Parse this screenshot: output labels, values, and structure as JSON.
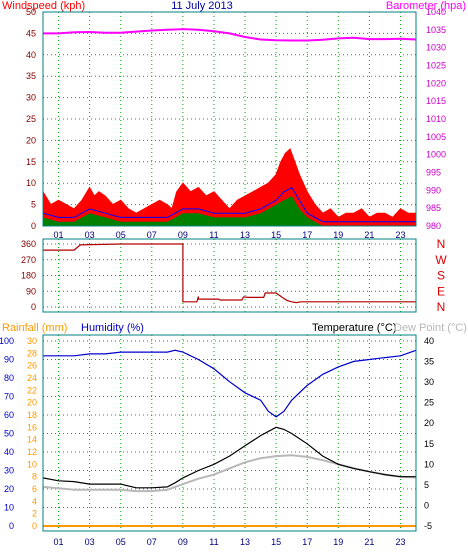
{
  "header": {
    "left_label": "Windspeed (kph)",
    "date": "11 July 2013",
    "right_label": "Barometer (hpa)"
  },
  "colors": {
    "windspeed": "#ff0000",
    "wind_avg": "#0000ff",
    "wind_fill": "#008000",
    "barometer": "#ff00ff",
    "direction": "#b00000",
    "rainfall": "#ff9900",
    "humidity": "#0000cc",
    "temperature": "#000000",
    "dew_point": "#b8b8b8",
    "grid": "#00aa00",
    "frame": "#008080"
  },
  "chart_data": [
    {
      "type": "line",
      "title": "11 July 2013",
      "ylabel": "Windspeed (kph)",
      "y2label": "Barometer (hpa)",
      "x_ticks": [
        "01",
        "03",
        "05",
        "07",
        "09",
        "11",
        "13",
        "15",
        "17",
        "19",
        "21",
        "23"
      ],
      "xlim": [
        0,
        24
      ],
      "ylim": [
        0,
        50
      ],
      "y_ticks": [
        0,
        5,
        10,
        15,
        20,
        25,
        30,
        35,
        40,
        45,
        50
      ],
      "y2lim": [
        980,
        1040
      ],
      "y2_ticks": [
        980,
        985,
        990,
        995,
        1000,
        1005,
        1010,
        1015,
        1020,
        1025,
        1030,
        1035,
        1040
      ],
      "grid": true,
      "series": [
        {
          "axis": "right",
          "x": [
            0,
            1,
            2,
            3,
            4,
            5,
            6,
            7,
            8,
            8.5,
            9,
            10,
            11,
            12,
            13,
            14,
            15,
            16,
            17,
            18,
            19,
            20,
            21,
            22,
            23,
            24
          ],
          "values": [
            1034,
            1034,
            1034.3,
            1034.4,
            1034.2,
            1034.2,
            1034.5,
            1034.8,
            1035,
            1035.1,
            1035.2,
            1035,
            1034.6,
            1034,
            1033,
            1032.3,
            1032.1,
            1032,
            1032,
            1032.2,
            1032.6,
            1032.8,
            1032.4,
            1032.4,
            1032.5,
            1032.3
          ]
        },
        {
          "x": [
            0,
            0.5,
            1,
            1.5,
            2,
            2.5,
            3,
            3.3,
            3.6,
            4,
            4.5,
            5,
            5.5,
            6,
            6.5,
            7,
            7.5,
            8,
            8.3,
            8.6,
            9,
            9.5,
            10,
            10.5,
            11,
            11.5,
            12,
            12.5,
            13,
            13.5,
            14,
            14.5,
            15,
            15.3,
            15.6,
            15.9,
            16.2,
            16.5,
            17,
            17.5,
            18,
            18.5,
            19,
            19.5,
            20,
            20.5,
            21,
            21.5,
            22,
            22.5,
            23,
            23.5,
            24
          ],
          "values": [
            8,
            5,
            6,
            5,
            4,
            6,
            9,
            7,
            8,
            7,
            5,
            6,
            4,
            3,
            4,
            5,
            6,
            5,
            4,
            8,
            10,
            8,
            9,
            7,
            8,
            6,
            4,
            6,
            7,
            8,
            9,
            10,
            12,
            15,
            17,
            18,
            15,
            12,
            8,
            5,
            3,
            4,
            2,
            3,
            3,
            4,
            2,
            3,
            3,
            2,
            4,
            3,
            3
          ]
        },
        {
          "x": [
            0,
            1,
            2,
            3,
            4,
            5,
            6,
            7,
            8,
            9,
            10,
            11,
            12,
            13,
            14,
            15,
            15.5,
            16,
            16.5,
            17,
            18,
            19,
            20,
            21,
            22,
            23,
            24
          ],
          "values": [
            3,
            2,
            2,
            4,
            3,
            2,
            2,
            2,
            2,
            4,
            4,
            3,
            3,
            3,
            4,
            6,
            8,
            9,
            6,
            3,
            1,
            1,
            1,
            1,
            1,
            1,
            1
          ]
        },
        {
          "x": [
            0,
            1,
            2,
            3,
            4,
            5,
            6,
            7,
            8,
            9,
            10,
            11,
            12,
            13,
            14,
            15,
            15.5,
            16,
            16.5,
            17,
            18,
            19,
            20,
            21,
            22,
            23,
            24
          ],
          "values": [
            2,
            1,
            1,
            3,
            2,
            1,
            1,
            1,
            1,
            3,
            3,
            2,
            2,
            2,
            3,
            5,
            6,
            7,
            4,
            2,
            0,
            0,
            0,
            0,
            0,
            0,
            0
          ]
        }
      ]
    },
    {
      "type": "line",
      "y_ticks": [
        0,
        90,
        180,
        270,
        360
      ],
      "ylim": [
        0,
        360
      ],
      "compass": [
        "N",
        "W",
        "S",
        "E",
        "N"
      ],
      "series": [
        {
          "x": [
            0,
            2,
            2.2,
            2.4,
            5,
            7,
            8.9,
            9,
            9,
            9.9,
            10,
            10,
            11.3,
            11.4,
            12.8,
            12.9,
            13.2,
            14.2,
            14.3,
            15,
            15.4,
            15.7,
            16,
            16.3,
            16.6,
            17,
            24
          ],
          "values": [
            325,
            325,
            340,
            355,
            360,
            360,
            360,
            360,
            30,
            30,
            60,
            45,
            45,
            40,
            40,
            58,
            55,
            55,
            80,
            80,
            55,
            38,
            30,
            25,
            30,
            30,
            30
          ]
        }
      ]
    },
    {
      "type": "line",
      "legend": [
        "Rainfall (mm)",
        "Humidity (%)",
        "Temperature (°C)",
        "Dew Point (°C)"
      ],
      "x_ticks": [
        "01",
        "03",
        "05",
        "07",
        "09",
        "11",
        "13",
        "15",
        "17",
        "19",
        "21",
        "23"
      ],
      "humidity_ticks": [
        0,
        10,
        20,
        30,
        40,
        50,
        60,
        70,
        80,
        90,
        100
      ],
      "humidity_lim": [
        0,
        100
      ],
      "rain_ticks": [
        0,
        2,
        4,
        6,
        8,
        10,
        12,
        14,
        16,
        18,
        20,
        22,
        24,
        26,
        28,
        30
      ],
      "rain_lim": [
        0,
        30
      ],
      "temp_ticks": [
        -5,
        0,
        5,
        10,
        15,
        20,
        25,
        30,
        35,
        40
      ],
      "temp_lim": [
        -5,
        40
      ],
      "grid": true,
      "series": [
        {
          "name": "Humidity (%)",
          "x": [
            0,
            1,
            2,
            3,
            4,
            5,
            6,
            7,
            8,
            8.5,
            9,
            10,
            11,
            12,
            13,
            14,
            14.5,
            15,
            15.5,
            16,
            17,
            18,
            19,
            20,
            21,
            22,
            23,
            24
          ],
          "values": [
            92,
            92,
            92,
            93,
            93,
            94,
            94,
            94,
            94,
            95,
            94,
            90,
            85,
            78,
            72,
            68,
            62,
            59,
            62,
            68,
            76,
            82,
            86,
            89,
            90,
            91,
            92,
            95
          ]
        },
        {
          "name": "Temperature (°C)",
          "x": [
            0,
            1,
            2,
            3,
            4,
            5,
            6,
            7,
            8,
            8.5,
            9,
            10,
            11,
            12,
            13,
            14,
            15,
            15.5,
            16,
            17,
            18,
            19,
            20,
            21,
            22,
            23,
            24
          ],
          "values": [
            6.7,
            6,
            5.8,
            5.2,
            5.2,
            5.2,
            4.3,
            4.3,
            4.5,
            5.5,
            6.7,
            8.5,
            10,
            12,
            14.5,
            17,
            19,
            18.5,
            17.5,
            15,
            12,
            10,
            9,
            8.2,
            7.5,
            7,
            7
          ]
        },
        {
          "name": "Dew Point (°C)",
          "x": [
            0,
            1,
            2,
            3,
            4,
            5,
            6,
            7,
            8,
            8.5,
            9,
            10,
            11,
            12,
            13,
            14,
            15,
            16,
            17,
            18,
            19,
            20,
            21,
            22,
            23,
            24
          ],
          "values": [
            4.5,
            4.2,
            3.8,
            3.8,
            3.8,
            3.8,
            3.5,
            3.5,
            3.8,
            4.5,
            5.2,
            6.5,
            7.5,
            9,
            10.5,
            11.5,
            12,
            12.2,
            11.8,
            11,
            10,
            9,
            8.2,
            7.5,
            7,
            6.8
          ]
        },
        {
          "name": "Rainfall (mm)",
          "x": [
            0,
            24
          ],
          "values": [
            0,
            0
          ]
        }
      ]
    }
  ]
}
